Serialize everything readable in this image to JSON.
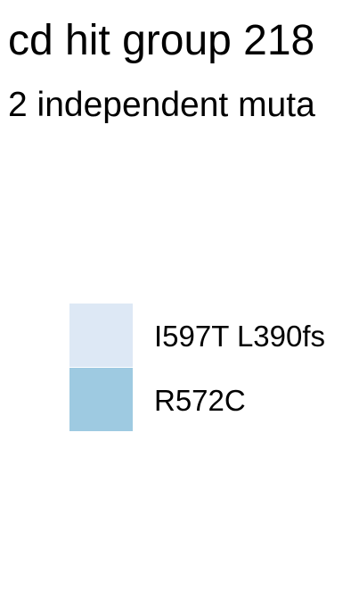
{
  "chart_data": {
    "type": "bar",
    "title": "cd hit group 218",
    "subtitle": "2 independent muta",
    "legend": {
      "placement": "center-left",
      "entries": [
        {
          "label": "I597T L390fs",
          "color": "#dde8f5"
        },
        {
          "label": "R572C",
          "color": "#9ecae1"
        }
      ]
    }
  }
}
